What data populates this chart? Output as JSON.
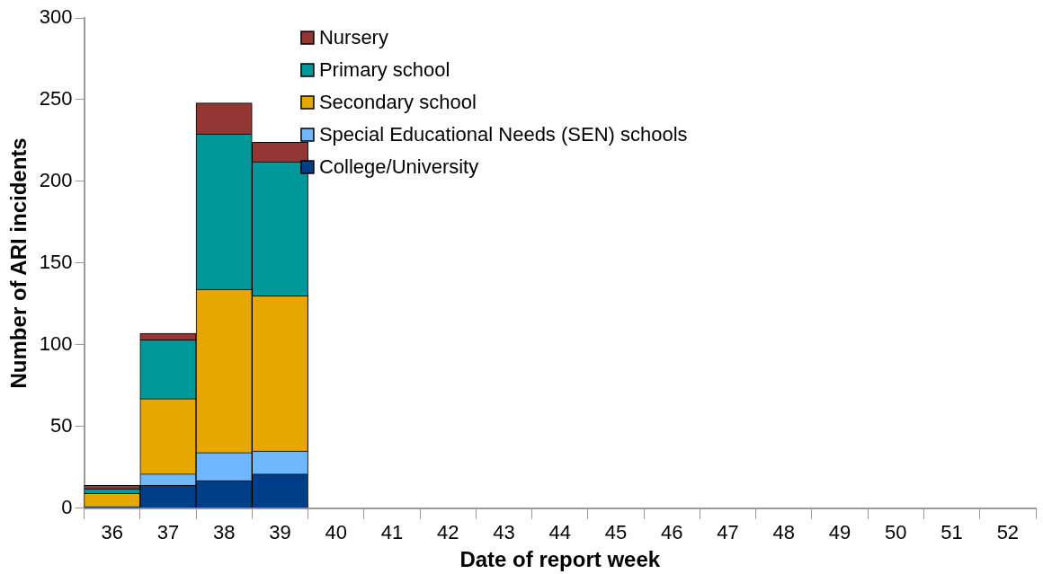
{
  "chart_data": {
    "type": "bar",
    "stacked": true,
    "xlabel": "Date of report week",
    "ylabel": "Number of ARI incidents",
    "categories": [
      "36",
      "37",
      "38",
      "39",
      "40",
      "41",
      "42",
      "43",
      "44",
      "45",
      "46",
      "47",
      "48",
      "49",
      "50",
      "51",
      "52"
    ],
    "ylim": [
      0,
      300
    ],
    "yticks": [
      0,
      50,
      100,
      150,
      200,
      250,
      300
    ],
    "grid": false,
    "legend": "top",
    "series": [
      {
        "name": "College/University",
        "color": "#003f87",
        "values": [
          1,
          14,
          17,
          21,
          null,
          null,
          null,
          null,
          null,
          null,
          null,
          null,
          null,
          null,
          null,
          null,
          null
        ]
      },
      {
        "name": "Special Educational Needs (SEN) schools",
        "color": "#6fb7ff",
        "values": [
          0,
          7,
          17,
          14,
          null,
          null,
          null,
          null,
          null,
          null,
          null,
          null,
          null,
          null,
          null,
          null,
          null
        ]
      },
      {
        "name": "Secondary school",
        "color": "#e6a800",
        "values": [
          8,
          46,
          100,
          95,
          null,
          null,
          null,
          null,
          null,
          null,
          null,
          null,
          null,
          null,
          null,
          null,
          null
        ]
      },
      {
        "name": "Primary school",
        "color": "#009999",
        "values": [
          3,
          36,
          95,
          82,
          null,
          null,
          null,
          null,
          null,
          null,
          null,
          null,
          null,
          null,
          null,
          null,
          null
        ]
      },
      {
        "name": "Nursery",
        "color": "#943634",
        "values": [
          2,
          4,
          19,
          12,
          null,
          null,
          null,
          null,
          null,
          null,
          null,
          null,
          null,
          null,
          null,
          null,
          null
        ]
      }
    ]
  }
}
